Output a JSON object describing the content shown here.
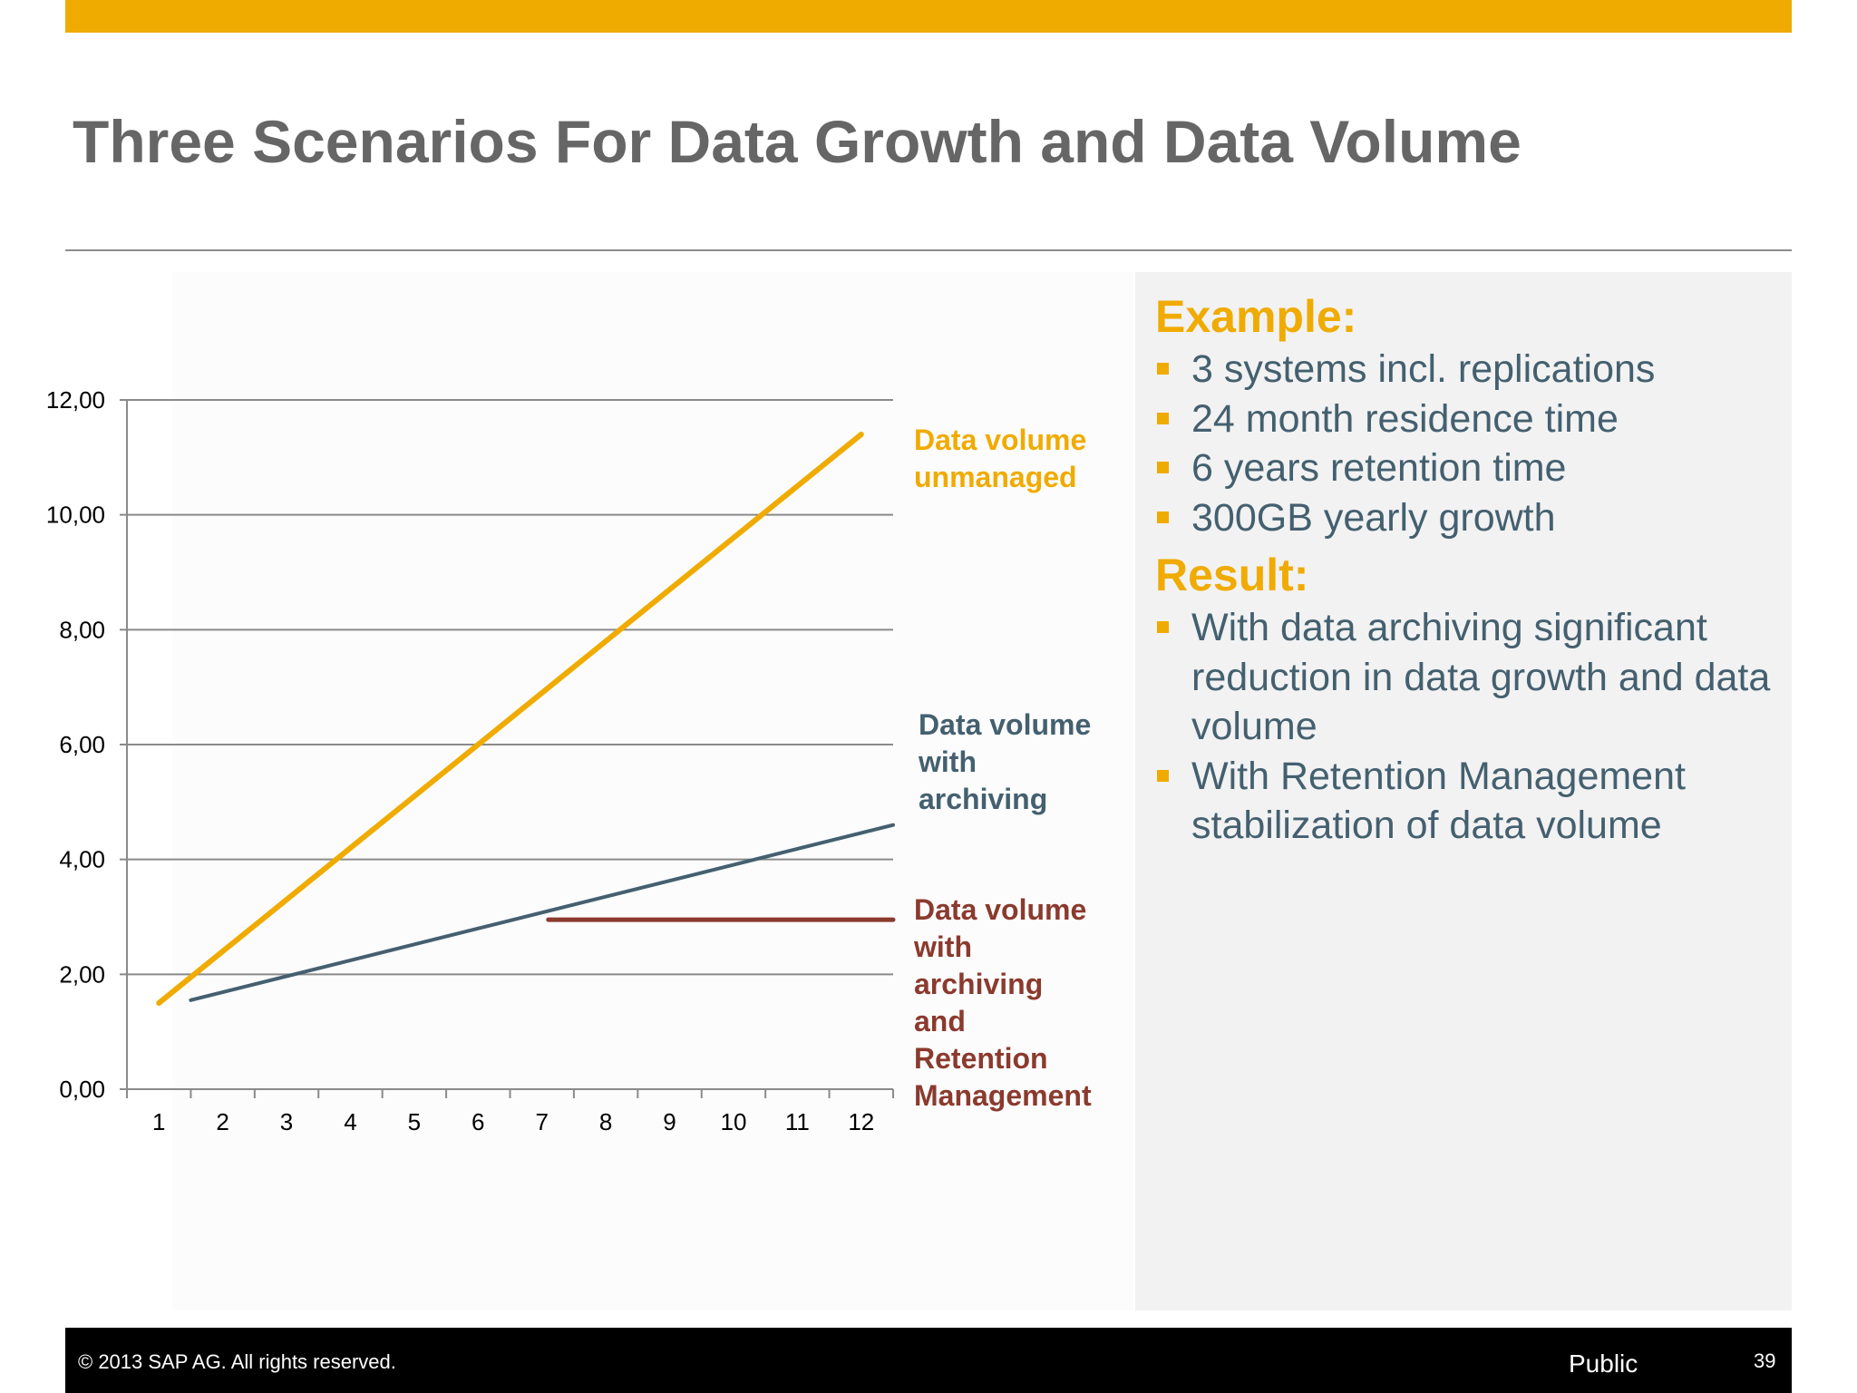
{
  "slide": {
    "title": "Three Scenarios For Data Growth and Data Volume",
    "colors": {
      "accent": "#f0ab00",
      "title_text": "#666666",
      "body_text": "#44606f",
      "footer_bg": "#000000"
    }
  },
  "chart_data": {
    "type": "line",
    "title": "",
    "xlabel": "",
    "ylabel": "",
    "categories": [
      "1",
      "2",
      "3",
      "4",
      "5",
      "6",
      "7",
      "8",
      "9",
      "10",
      "11",
      "12"
    ],
    "ylim": [
      0,
      12
    ],
    "y_ticks": [
      "0,00",
      "2,00",
      "4,00",
      "6,00",
      "8,00",
      "10,00",
      "12,00"
    ],
    "grid": true,
    "legend": "labels at right end of lines",
    "series": [
      {
        "name": "Data volume unmanaged",
        "label_lines": [
          "Data volume",
          "unmanaged"
        ],
        "color": "#f0ab00",
        "x": [
          1,
          12
        ],
        "values": [
          1.5,
          11.4
        ]
      },
      {
        "name": "Data volume with archiving",
        "label_lines": [
          "Data volume",
          "with",
          "archiving"
        ],
        "color": "#44606f",
        "x": [
          1.5,
          12.5
        ],
        "values": [
          1.55,
          4.6
        ]
      },
      {
        "name": "Data volume with archiving and Retention Management",
        "label_lines": [
          "Data volume",
          "with",
          "archiving",
          "and",
          "Retention",
          "Management"
        ],
        "color": "#8b3a2e",
        "x": [
          7.1,
          12.5
        ],
        "values": [
          2.95,
          2.95
        ]
      }
    ]
  },
  "panel": {
    "example_heading": "Example:",
    "example_items": [
      "3 systems incl. replications",
      "24 month residence time",
      "6 years retention time",
      "300GB yearly growth"
    ],
    "result_heading": "Result:",
    "result_items": [
      "With data archiving significant reduction in data growth and data volume",
      "With Retention Management stabilization of data volume"
    ]
  },
  "footer": {
    "copyright": "©  2013 SAP AG. All rights reserved.",
    "classification": "Public",
    "page_number": "39"
  }
}
